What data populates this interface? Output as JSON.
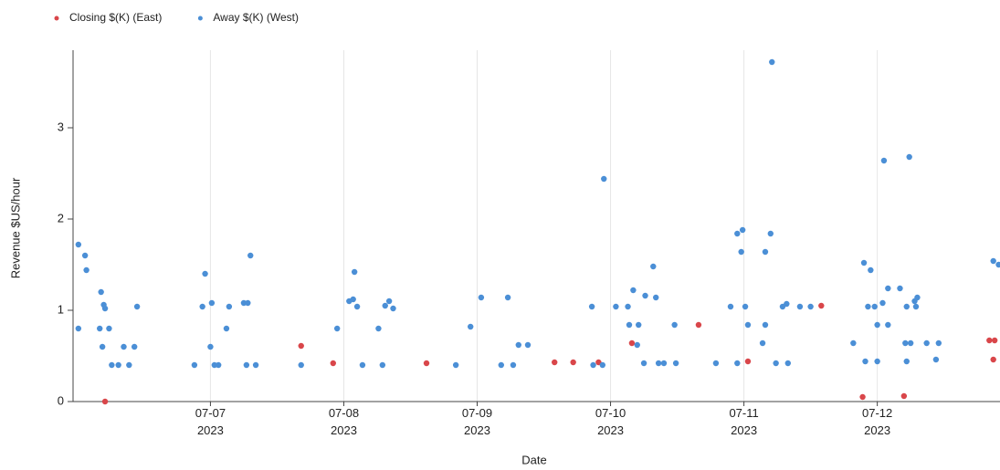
{
  "chart_data": {
    "type": "scatter",
    "x_label": "Date",
    "y_label": "Revenue $US/hour",
    "xlim": [
      5.97,
      12.92
    ],
    "ylim": [
      0,
      3.85
    ],
    "xticks": [
      {
        "value": 7,
        "label": [
          "07-07",
          "2023"
        ]
      },
      {
        "value": 8,
        "label": [
          "07-08",
          "2023"
        ]
      },
      {
        "value": 9,
        "label": [
          "07-09",
          "2023"
        ]
      },
      {
        "value": 10,
        "label": [
          "07-10",
          "2023"
        ]
      },
      {
        "value": 11,
        "label": [
          "07-11",
          "2023"
        ]
      },
      {
        "value": 12,
        "label": [
          "07-12",
          "2023"
        ]
      }
    ],
    "yticks": [
      0,
      1,
      2,
      3
    ],
    "xgrid": true,
    "legend": "top-left",
    "series": [
      {
        "name": "Closing $(K) (East)",
        "color": "#d9464a",
        "x": [
          6.21,
          7.68,
          7.92,
          8.62,
          9.58,
          9.72,
          9.91,
          10.16,
          10.66,
          11.03,
          11.58,
          11.89,
          12.2,
          12.84,
          12.88,
          12.87
        ],
        "values": [
          0,
          0.61,
          0.42,
          0.42,
          0.43,
          0.43,
          0.43,
          0.64,
          0.84,
          0.44,
          1.05,
          0.05,
          0.06,
          0.67,
          0.67,
          0.46
        ]
      },
      {
        "name": "Away $(K) (West)",
        "color": "#4b8fd6",
        "x": [
          6.01,
          6.06,
          6.07,
          6.01,
          6.18,
          6.2,
          6.21,
          6.17,
          6.24,
          6.19,
          6.26,
          6.31,
          6.35,
          6.39,
          6.43,
          6.45,
          6.88,
          6.96,
          6.94,
          7.01,
          7.0,
          7.03,
          7.06,
          7.12,
          7.14,
          7.25,
          7.28,
          7.3,
          7.27,
          7.34,
          7.68,
          7.95,
          8.04,
          8.07,
          8.08,
          8.1,
          8.14,
          8.26,
          8.31,
          8.34,
          8.37,
          8.29,
          8.84,
          8.95,
          9.03,
          9.18,
          9.23,
          9.27,
          9.31,
          9.38,
          9.87,
          9.95,
          9.86,
          9.94,
          10.04,
          10.13,
          10.14,
          10.17,
          10.21,
          10.2,
          10.26,
          10.32,
          10.34,
          10.25,
          10.36,
          10.4,
          10.48,
          10.49,
          10.79,
          10.9,
          10.95,
          10.99,
          10.98,
          11.01,
          11.03,
          10.95,
          11.16,
          11.2,
          11.21,
          11.16,
          11.14,
          11.24,
          11.29,
          11.32,
          11.33,
          11.42,
          11.5,
          11.82,
          11.9,
          11.95,
          11.93,
          11.98,
          11.91,
          12.0,
          12.05,
          12.04,
          12.0,
          12.08,
          12.08,
          12.17,
          12.24,
          12.22,
          12.21,
          12.25,
          12.28,
          12.3,
          12.29,
          12.22,
          12.37,
          12.44,
          12.46,
          12.87,
          12.91
        ],
        "values": [
          1.72,
          1.6,
          1.44,
          0.8,
          1.2,
          1.06,
          1.02,
          0.8,
          0.8,
          0.6,
          0.4,
          0.4,
          0.6,
          0.4,
          0.6,
          1.04,
          0.4,
          1.4,
          1.04,
          1.08,
          0.6,
          0.4,
          0.4,
          0.8,
          1.04,
          1.08,
          1.08,
          1.6,
          0.4,
          0.4,
          0.4,
          0.8,
          1.1,
          1.12,
          1.42,
          1.04,
          0.4,
          0.8,
          1.05,
          1.1,
          1.02,
          0.4,
          0.4,
          0.82,
          1.14,
          0.4,
          1.14,
          0.4,
          0.62,
          0.62,
          0.4,
          2.44,
          1.04,
          0.4,
          1.04,
          1.04,
          0.84,
          1.22,
          0.84,
          0.62,
          1.16,
          1.48,
          1.14,
          0.42,
          0.42,
          0.42,
          0.84,
          0.42,
          0.42,
          1.04,
          1.84,
          1.88,
          1.64,
          1.04,
          0.84,
          0.42,
          1.64,
          1.84,
          3.72,
          0.84,
          0.64,
          0.42,
          1.04,
          1.07,
          0.42,
          1.04,
          1.04,
          0.64,
          1.52,
          1.44,
          1.04,
          1.04,
          0.44,
          0.44,
          2.64,
          1.08,
          0.84,
          0.84,
          1.24,
          1.24,
          2.68,
          1.04,
          0.64,
          0.64,
          1.1,
          1.14,
          1.04,
          0.44,
          0.64,
          0.46,
          0.64,
          1.54,
          1.5
        ]
      }
    ]
  }
}
